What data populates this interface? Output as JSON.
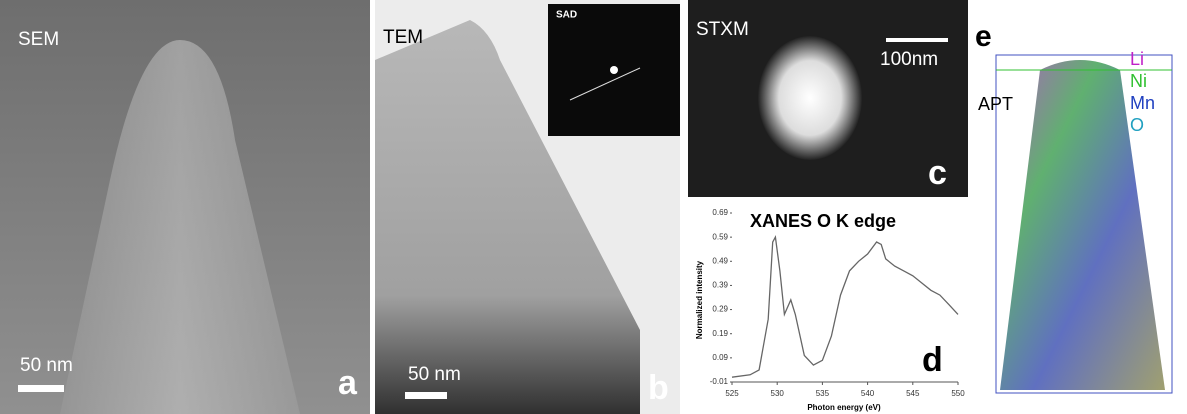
{
  "panels": {
    "sem": {
      "label": "SEM",
      "scale_bar": "50 nm",
      "letter": "a"
    },
    "tem": {
      "label": "TEM",
      "inset": "SAD",
      "scale_bar": "50 nm",
      "letter": "b"
    },
    "stxm": {
      "label": "STXM",
      "scale_bar": "100nm",
      "letter": "c"
    },
    "apt": {
      "label": "APT",
      "letter": "e",
      "legend": [
        {
          "name": "Li",
          "color": "#c020c8"
        },
        {
          "name": "Ni",
          "color": "#30c030"
        },
        {
          "name": "Mn",
          "color": "#2040c0"
        },
        {
          "name": "O",
          "color": "#20a0c0"
        }
      ]
    }
  },
  "chart_data": {
    "type": "line",
    "title": "XANES O K edge",
    "letter": "d",
    "x_label": "Photon energy (eV)",
    "y_label": "Normalized intensity",
    "x": [
      525,
      527,
      528,
      529,
      529.5,
      529.8,
      530.3,
      530.8,
      531.5,
      532,
      533,
      534,
      535,
      536,
      537,
      538,
      539,
      540,
      541,
      541.5,
      542,
      543,
      544,
      545,
      546,
      547,
      548,
      549,
      550
    ],
    "values": [
      0.01,
      0.02,
      0.04,
      0.25,
      0.57,
      0.59,
      0.45,
      0.27,
      0.33,
      0.27,
      0.1,
      0.06,
      0.08,
      0.18,
      0.35,
      0.45,
      0.49,
      0.52,
      0.57,
      0.56,
      0.5,
      0.47,
      0.45,
      0.43,
      0.4,
      0.37,
      0.35,
      0.31,
      0.27
    ],
    "color": "#666666",
    "xlim": [
      525,
      550
    ],
    "xticks": [
      525,
      530,
      535,
      540,
      545,
      550
    ],
    "ylim": [
      -0.01,
      0.69
    ],
    "yticks": [
      -0.01,
      0.09,
      0.19,
      0.29,
      0.39,
      0.49,
      0.59,
      0.69
    ]
  }
}
